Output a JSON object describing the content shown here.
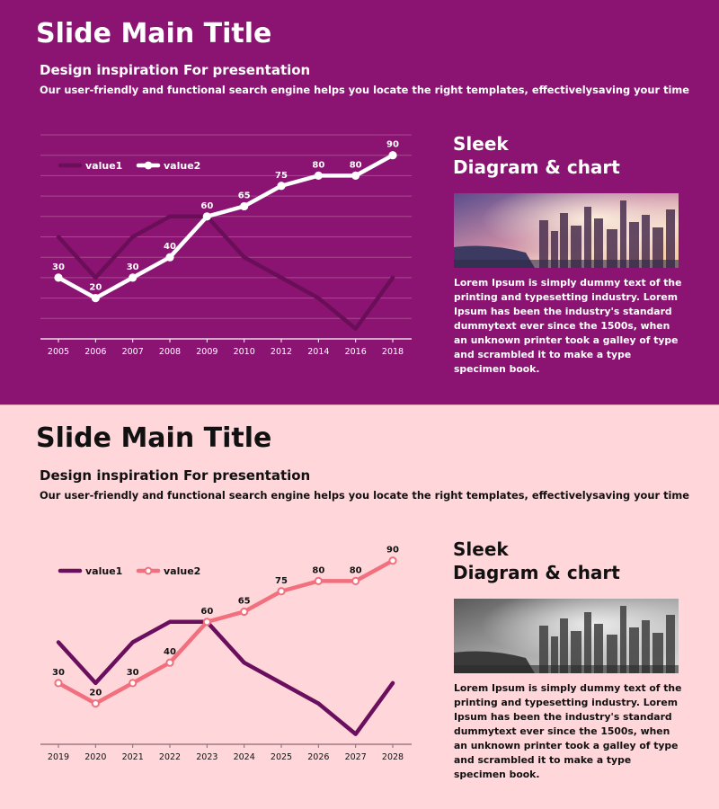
{
  "slides": [
    {
      "title": "Slide Main Title",
      "subtitle": "Design inspiration For presentation",
      "description": "Our user-friendly and functional search engine helps you locate the right templates, effectivelysaving your time",
      "side_title_line1": "Sleek",
      "side_title_line2": "Diagram & chart",
      "body": "Lorem Ipsum is simply dummy text of the printing and typesetting industry. Lorem Ipsum has been the industry's standard dummytext ever since the 1500s, when an unknown printer took a galley of type and scrambled it to make a type specimen book.",
      "colors": {
        "background": "#8b1473",
        "text": "#ffffff",
        "series1": "#6a0e58",
        "series2": "#ffffff",
        "axis": "#ffffff",
        "grid": "#a9498f",
        "photo": "city-sunset-color"
      }
    },
    {
      "title": "Slide Main Title",
      "subtitle": "Design inspiration For presentation",
      "description": "Our user-friendly and functional search engine helps you locate the right templates, effectivelysaving your time",
      "side_title_line1": "Sleek",
      "side_title_line2": "Diagram & chart",
      "body": "Lorem Ipsum is simply dummy text of the printing and typesetting industry. Lorem Ipsum has been the industry's standard dummytext ever since the 1500s, when an unknown printer took a galley of type and scrambled it to make a type specimen book.",
      "colors": {
        "background": "#ffd6da",
        "text": "#111111",
        "series1": "#6a0e5e",
        "series2": "#f2707e",
        "axis": "#8a6a70",
        "grid": null,
        "photo": "city-sunset-grayscale"
      }
    }
  ],
  "chart_data": [
    {
      "type": "line",
      "categories": [
        "2005",
        "2006",
        "2007",
        "2008",
        "2009",
        "2010",
        "2012",
        "2014",
        "2016",
        "2018"
      ],
      "series": [
        {
          "name": "value1",
          "values": [
            50,
            30,
            50,
            60,
            60,
            40,
            30,
            20,
            5,
            30
          ],
          "labeled": false
        },
        {
          "name": "value2",
          "values": [
            30,
            20,
            30,
            40,
            60,
            65,
            75,
            80,
            80,
            90
          ],
          "labeled": true
        }
      ],
      "ylim": [
        0,
        100
      ],
      "grid": true,
      "legend": "top-left"
    },
    {
      "type": "line",
      "categories": [
        "2019",
        "2020",
        "2021",
        "2022",
        "2023",
        "2024",
        "2025",
        "2026",
        "2027",
        "2028"
      ],
      "series": [
        {
          "name": "value1",
          "values": [
            50,
            30,
            50,
            60,
            60,
            40,
            30,
            20,
            5,
            30
          ],
          "labeled": false
        },
        {
          "name": "value2",
          "values": [
            30,
            20,
            30,
            40,
            60,
            65,
            75,
            80,
            80,
            90
          ],
          "labeled": true
        }
      ],
      "ylim": [
        0,
        100
      ],
      "grid": false,
      "legend": "top-left"
    }
  ]
}
